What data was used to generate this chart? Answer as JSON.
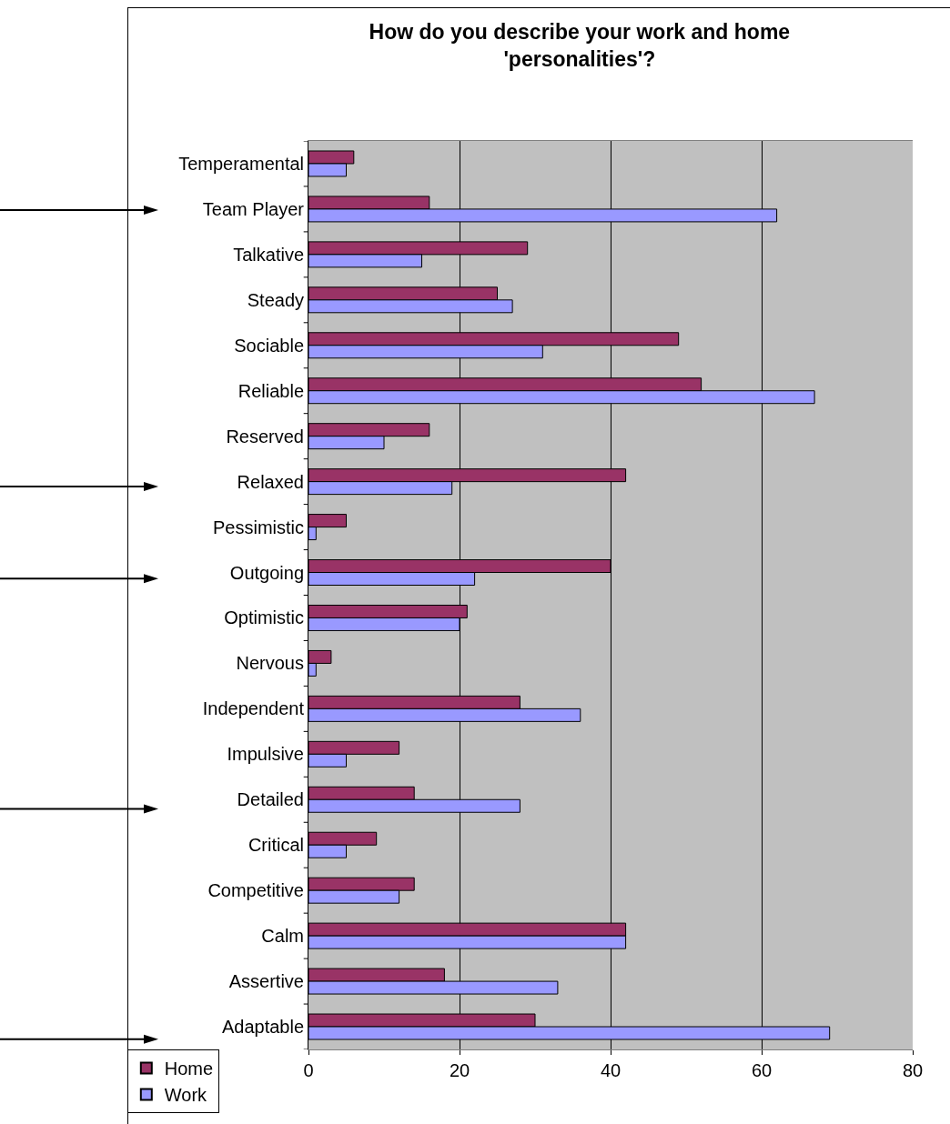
{
  "chart_data": {
    "type": "bar",
    "orientation": "horizontal",
    "title": "How do you describe your work and home 'personalities'?",
    "categories": [
      "Temperamental",
      "Team Player",
      "Talkative",
      "Steady",
      "Sociable",
      "Reliable",
      "Reserved",
      "Relaxed",
      "Pessimistic",
      "Outgoing",
      "Optimistic",
      "Nervous",
      "Independent",
      "Impulsive",
      "Detailed",
      "Critical",
      "Competitive",
      "Calm",
      "Assertive",
      "Adaptable"
    ],
    "series": [
      {
        "name": "Home",
        "color": "#993366",
        "values": [
          6,
          16,
          29,
          25,
          49,
          52,
          16,
          42,
          5,
          40,
          21,
          3,
          28,
          12,
          14,
          9,
          14,
          42,
          18,
          30
        ]
      },
      {
        "name": "Work",
        "color": "#9999ff",
        "values": [
          5,
          62,
          15,
          27,
          31,
          67,
          10,
          19,
          1,
          22,
          20,
          1,
          36,
          5,
          28,
          5,
          12,
          42,
          33,
          69
        ]
      }
    ],
    "xlim": [
      0,
      80
    ],
    "xticks": [
      0,
      20,
      40,
      60,
      80
    ],
    "grid": "x",
    "legend": "bottom left"
  }
}
